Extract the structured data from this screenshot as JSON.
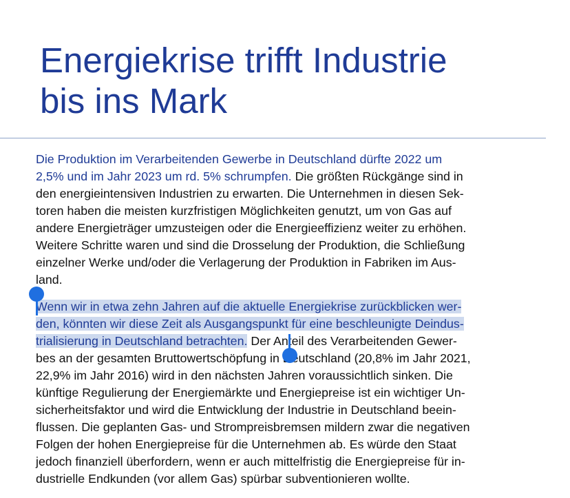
{
  "headline": {
    "line1": "Energiekrise trifft Industrie",
    "line2": "bis ins Mark"
  },
  "paragraph1": {
    "lines": [
      {
        "lead": "Die Produktion im Verarbeitenden Gewerbe in Deutschland dürfte 2022 um",
        "rest": ""
      },
      {
        "lead": "2,5% und im Jahr 2023 um rd. 5% schrumpfen.",
        "rest": " Die größten Rückgänge sind in"
      },
      {
        "lead": "",
        "rest": "den energieintensiven Industrien zu erwarten. Die Unternehmen in diesen Sek-"
      },
      {
        "lead": "",
        "rest": "toren haben die meisten kurzfristigen Möglichkeiten genutzt, um von Gas auf"
      },
      {
        "lead": "",
        "rest": "andere Energieträger umzusteigen oder die Energieeffizienz weiter zu erhöhen."
      },
      {
        "lead": "",
        "rest": "Weitere Schritte waren und sind die Drosselung der Produktion, die Schließung"
      },
      {
        "lead": "",
        "rest": "einzelner Werke und/oder die Verlagerung der Produktion in Fabriken im Aus-"
      },
      {
        "lead": "",
        "rest": "land."
      }
    ]
  },
  "paragraph2": {
    "lines": [
      {
        "lead": "Wenn wir in etwa zehn Jahren auf die aktuelle Energiekrise zurückblicken wer-",
        "rest": ""
      },
      {
        "lead": "den, könnten wir diese Zeit als Ausgangspunkt für eine beschleunigte Deindus-",
        "rest": ""
      },
      {
        "lead": "trialisierung in Deutschland betrachten.",
        "rest": " Der Anteil des Verarbeitenden Gewer-"
      },
      {
        "lead": "",
        "rest": "bes an der gesamten Bruttowertschöpfung in Deutschland (20,8% im Jahr 2021,"
      },
      {
        "lead": "",
        "rest": "22,9% im Jahr 2016) wird in den nächsten Jahren voraussichtlich sinken. Die"
      },
      {
        "lead": "",
        "rest": "künftige Regulierung der Energiemärkte und Energiepreise ist ein wichtiger Un-"
      },
      {
        "lead": "",
        "rest": "sicherheitsfaktor und wird die Entwicklung der Industrie in Deutschland beein-"
      },
      {
        "lead": "",
        "rest": "flussen. Die geplanten Gas- und Strompreisbremsen mildern zwar die negativen"
      },
      {
        "lead": "",
        "rest": "Folgen der hohen Energiepreise für die Unternehmen ab. Es würde den Staat"
      },
      {
        "lead": "",
        "rest": "jedoch finanziell überfordern, wenn er auch mittelfristig die Energiepreise für in-"
      },
      {
        "lead": "",
        "rest": "dustrielle Endkunden (vor allem Gas) spürbar subventionieren wollte."
      }
    ]
  },
  "colors": {
    "accent": "#1f3b96",
    "selection": "#cdd9ee",
    "selection_handle": "#1f6fe0",
    "rule": "#8da3c9"
  }
}
